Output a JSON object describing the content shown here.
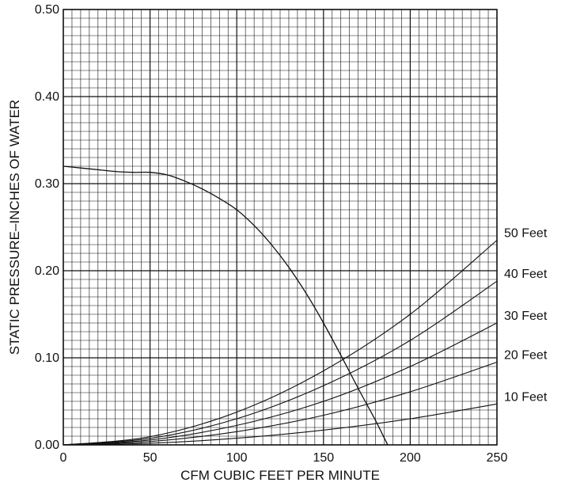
{
  "chart_data": {
    "type": "line",
    "title": "",
    "xlabel": "CFM CUBIC FEET PER MINUTE",
    "ylabel": "STATIC PRESSURE–INCHES OF WATER",
    "xlim": [
      0,
      250
    ],
    "ylim": [
      0,
      0.5
    ],
    "x_ticks": [
      "0",
      "50",
      "100",
      "150",
      "200",
      "250"
    ],
    "y_ticks": [
      "0.00",
      "0.10",
      "0.20",
      "0.30",
      "0.40",
      "0.50"
    ],
    "grid": true,
    "fan_curve": {
      "x": [
        0,
        10,
        20,
        30,
        40,
        50,
        60,
        70,
        80,
        90,
        100,
        110,
        120,
        130,
        140,
        150,
        160,
        170,
        180,
        185,
        187
      ],
      "y": [
        0.32,
        0.318,
        0.316,
        0.314,
        0.313,
        0.313,
        0.31,
        0.303,
        0.294,
        0.283,
        0.27,
        0.252,
        0.23,
        0.204,
        0.174,
        0.14,
        0.103,
        0.065,
        0.028,
        0.008,
        0.0
      ]
    },
    "series": [
      {
        "name": "10 Feet",
        "x": [
          0,
          50,
          100,
          150,
          200,
          250
        ],
        "y": [
          0,
          0.0019,
          0.0076,
          0.017,
          0.03,
          0.047
        ]
      },
      {
        "name": "20 Feet",
        "x": [
          0,
          50,
          100,
          150,
          200,
          250
        ],
        "y": [
          0,
          0.0038,
          0.0152,
          0.034,
          0.061,
          0.095
        ]
      },
      {
        "name": "30 Feet",
        "x": [
          0,
          50,
          100,
          150,
          200,
          250
        ],
        "y": [
          0,
          0.0056,
          0.0224,
          0.05,
          0.09,
          0.14
        ]
      },
      {
        "name": "40 Feet",
        "x": [
          0,
          50,
          100,
          150,
          200,
          250
        ],
        "y": [
          0,
          0.0075,
          0.03,
          0.068,
          0.12,
          0.188
        ]
      },
      {
        "name": "50 Feet",
        "x": [
          0,
          50,
          100,
          150,
          200,
          250
        ],
        "y": [
          0,
          0.0094,
          0.0376,
          0.085,
          0.15,
          0.235
        ]
      }
    ]
  }
}
